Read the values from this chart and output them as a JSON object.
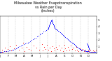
{
  "title": "Milwaukee Weather Evapotranspiration\nvs Rain per Day\n(Inches)",
  "title_fontsize": 3.5,
  "background_color": "#ffffff",
  "plot_bg_color": "#ffffff",
  "grid_color": "#aaaaaa",
  "x_min": 0,
  "x_max": 365,
  "y_min": 0,
  "y_max": 0.55,
  "y_ticks": [
    0.1,
    0.2,
    0.3,
    0.4,
    0.5
  ],
  "y_tick_labels": [
    ".1",
    ".2",
    ".3",
    ".4",
    ".5"
  ],
  "x_tick_positions": [
    0,
    31,
    59,
    90,
    120,
    151,
    181,
    212,
    243,
    273,
    304,
    334,
    365
  ],
  "x_tick_labels": [
    "J",
    "F",
    "M",
    "A",
    "M",
    "J",
    "J",
    "A",
    "S",
    "O",
    "N",
    "D",
    ""
  ],
  "et_color": "#0000ff",
  "rain_color": "#ff0000",
  "dot_size": 0.6,
  "et_data": [
    [
      1,
      0.02
    ],
    [
      2,
      0.02
    ],
    [
      3,
      0.02
    ],
    [
      5,
      0.02
    ],
    [
      7,
      0.02
    ],
    [
      10,
      0.02
    ],
    [
      15,
      0.03
    ],
    [
      20,
      0.03
    ],
    [
      25,
      0.03
    ],
    [
      30,
      0.03
    ],
    [
      35,
      0.04
    ],
    [
      40,
      0.04
    ],
    [
      45,
      0.05
    ],
    [
      50,
      0.05
    ],
    [
      55,
      0.06
    ],
    [
      60,
      0.07
    ],
    [
      65,
      0.08
    ],
    [
      70,
      0.09
    ],
    [
      75,
      0.1
    ],
    [
      80,
      0.11
    ],
    [
      85,
      0.12
    ],
    [
      90,
      0.13
    ],
    [
      95,
      0.14
    ],
    [
      100,
      0.15
    ],
    [
      105,
      0.16
    ],
    [
      110,
      0.17
    ],
    [
      115,
      0.18
    ],
    [
      120,
      0.2
    ],
    [
      125,
      0.21
    ],
    [
      130,
      0.22
    ],
    [
      135,
      0.23
    ],
    [
      140,
      0.25
    ],
    [
      145,
      0.26
    ],
    [
      150,
      0.28
    ],
    [
      155,
      0.29
    ],
    [
      160,
      0.3
    ],
    [
      165,
      0.32
    ],
    [
      170,
      0.33
    ],
    [
      175,
      0.34
    ],
    [
      180,
      0.35
    ],
    [
      181,
      0.36
    ],
    [
      182,
      0.37
    ],
    [
      183,
      0.38
    ],
    [
      184,
      0.39
    ],
    [
      185,
      0.4
    ],
    [
      186,
      0.41
    ],
    [
      187,
      0.42
    ],
    [
      188,
      0.43
    ],
    [
      189,
      0.44
    ],
    [
      190,
      0.45
    ],
    [
      191,
      0.46
    ],
    [
      192,
      0.47
    ],
    [
      193,
      0.48
    ],
    [
      194,
      0.49
    ],
    [
      195,
      0.5
    ],
    [
      196,
      0.49
    ],
    [
      197,
      0.48
    ],
    [
      198,
      0.47
    ],
    [
      199,
      0.46
    ],
    [
      200,
      0.45
    ],
    [
      201,
      0.44
    ],
    [
      202,
      0.43
    ],
    [
      203,
      0.42
    ],
    [
      204,
      0.41
    ],
    [
      205,
      0.4
    ],
    [
      206,
      0.39
    ],
    [
      208,
      0.38
    ],
    [
      210,
      0.37
    ],
    [
      212,
      0.36
    ],
    [
      215,
      0.35
    ],
    [
      218,
      0.34
    ],
    [
      221,
      0.33
    ],
    [
      224,
      0.32
    ],
    [
      227,
      0.31
    ],
    [
      230,
      0.3
    ],
    [
      233,
      0.29
    ],
    [
      236,
      0.28
    ],
    [
      239,
      0.27
    ],
    [
      242,
      0.26
    ],
    [
      245,
      0.25
    ],
    [
      248,
      0.24
    ],
    [
      251,
      0.23
    ],
    [
      254,
      0.22
    ],
    [
      257,
      0.21
    ],
    [
      260,
      0.2
    ],
    [
      263,
      0.19
    ],
    [
      266,
      0.18
    ],
    [
      269,
      0.17
    ],
    [
      272,
      0.16
    ],
    [
      275,
      0.15
    ],
    [
      278,
      0.14
    ],
    [
      281,
      0.13
    ],
    [
      284,
      0.12
    ],
    [
      287,
      0.11
    ],
    [
      290,
      0.1
    ],
    [
      293,
      0.09
    ],
    [
      296,
      0.08
    ],
    [
      299,
      0.07
    ],
    [
      302,
      0.06
    ],
    [
      305,
      0.06
    ],
    [
      308,
      0.05
    ],
    [
      311,
      0.05
    ],
    [
      314,
      0.04
    ],
    [
      317,
      0.04
    ],
    [
      320,
      0.04
    ],
    [
      323,
      0.03
    ],
    [
      326,
      0.03
    ],
    [
      329,
      0.03
    ],
    [
      332,
      0.03
    ],
    [
      335,
      0.03
    ],
    [
      338,
      0.02
    ],
    [
      341,
      0.02
    ],
    [
      344,
      0.02
    ],
    [
      347,
      0.02
    ],
    [
      350,
      0.02
    ],
    [
      353,
      0.02
    ],
    [
      356,
      0.02
    ],
    [
      359,
      0.02
    ],
    [
      362,
      0.02
    ],
    [
      365,
      0.02
    ],
    [
      330,
      0.14
    ],
    [
      331,
      0.13
    ],
    [
      332,
      0.12
    ],
    [
      333,
      0.11
    ],
    [
      334,
      0.1
    ],
    [
      335,
      0.09
    ],
    [
      336,
      0.08
    ],
    [
      337,
      0.07
    ],
    [
      338,
      0.06
    ],
    [
      339,
      0.05
    ]
  ],
  "rain_data": [
    [
      8,
      0.05
    ],
    [
      9,
      0.02
    ],
    [
      18,
      0.08
    ],
    [
      22,
      0.03
    ],
    [
      28,
      0.06
    ],
    [
      38,
      0.1
    ],
    [
      42,
      0.04
    ],
    [
      52,
      0.07
    ],
    [
      62,
      0.12
    ],
    [
      72,
      0.05
    ],
    [
      82,
      0.08
    ],
    [
      88,
      0.15
    ],
    [
      92,
      0.03
    ],
    [
      102,
      0.09
    ],
    [
      108,
      0.06
    ],
    [
      118,
      0.04
    ],
    [
      128,
      0.11
    ],
    [
      138,
      0.08
    ],
    [
      148,
      0.05
    ],
    [
      158,
      0.13
    ],
    [
      163,
      0.04
    ],
    [
      168,
      0.09
    ],
    [
      172,
      0.06
    ],
    [
      178,
      0.12
    ],
    [
      183,
      0.05
    ],
    [
      188,
      0.08
    ],
    [
      193,
      0.03
    ],
    [
      198,
      0.1
    ],
    [
      203,
      0.07
    ],
    [
      208,
      0.04
    ],
    [
      213,
      0.09
    ],
    [
      218,
      0.06
    ],
    [
      223,
      0.11
    ],
    [
      228,
      0.05
    ],
    [
      233,
      0.08
    ],
    [
      238,
      0.03
    ],
    [
      243,
      0.12
    ],
    [
      248,
      0.07
    ],
    [
      253,
      0.04
    ],
    [
      258,
      0.09
    ],
    [
      263,
      0.05
    ],
    [
      268,
      0.11
    ],
    [
      273,
      0.06
    ],
    [
      278,
      0.08
    ],
    [
      283,
      0.04
    ],
    [
      288,
      0.09
    ],
    [
      293,
      0.05
    ],
    [
      298,
      0.03
    ],
    [
      303,
      0.07
    ],
    [
      308,
      0.04
    ],
    [
      313,
      0.06
    ],
    [
      318,
      0.03
    ],
    [
      323,
      0.05
    ],
    [
      328,
      0.02
    ],
    [
      333,
      0.04
    ],
    [
      338,
      0.03
    ],
    [
      343,
      0.05
    ],
    [
      348,
      0.02
    ],
    [
      353,
      0.04
    ],
    [
      358,
      0.03
    ],
    [
      363,
      0.05
    ]
  ],
  "vgrid_positions": [
    31,
    59,
    90,
    120,
    151,
    181,
    212,
    243,
    273,
    304,
    334
  ]
}
